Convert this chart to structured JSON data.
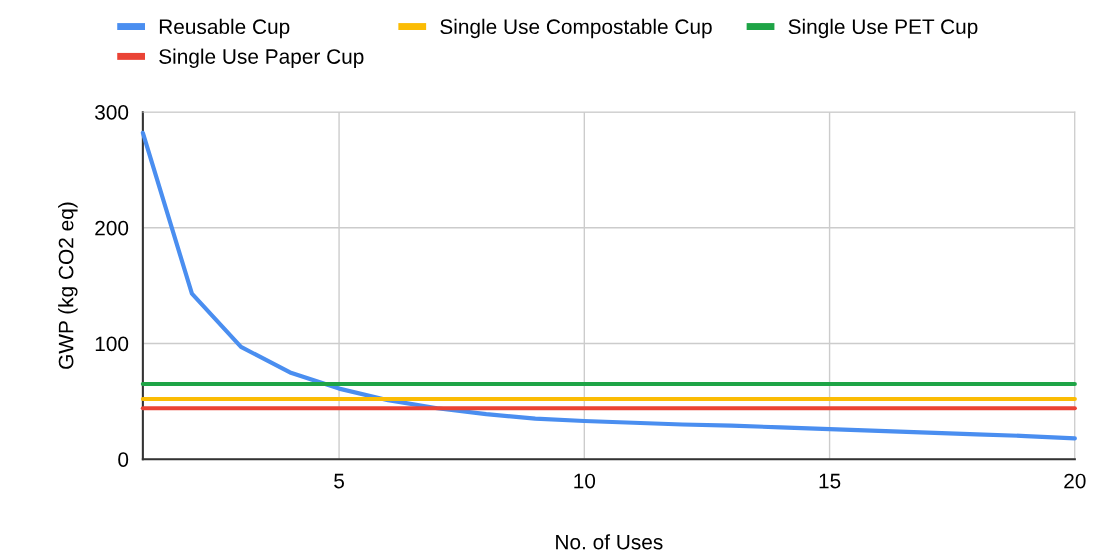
{
  "chart_data": {
    "type": "line",
    "xlabel": "No. of Uses",
    "ylabel": "GWP (kg CO2 eq)",
    "xlim": [
      1,
      20
    ],
    "xticks": [
      5,
      10,
      15,
      20
    ],
    "ylim": [
      0,
      300
    ],
    "yticks": [
      0,
      100,
      200,
      300
    ],
    "grid": true,
    "legend": "top",
    "marker": "none",
    "line_style": "solid",
    "series": [
      {
        "name": "Reusable Cup",
        "color": "#4a8ef0",
        "x": [
          1,
          2,
          3,
          4,
          5,
          6,
          7,
          8,
          9,
          10,
          11,
          12,
          13,
          14,
          15,
          16,
          17,
          18,
          19,
          20
        ],
        "values": [
          282,
          143,
          97,
          75,
          61,
          51,
          44,
          39,
          35,
          33,
          31.5,
          30,
          29,
          27.5,
          26,
          24.5,
          23,
          21.5,
          20,
          18
        ]
      },
      {
        "name": "Single Use Paper Cup",
        "color": "#ea4335",
        "x": [
          1,
          20
        ],
        "values": [
          44,
          44
        ]
      },
      {
        "name": "Single Use Compostable Cup",
        "color": "#fbbc04",
        "x": [
          1,
          20
        ],
        "values": [
          52,
          52
        ]
      },
      {
        "name": "Single Use PET Cup",
        "color": "#1ea446",
        "x": [
          1,
          20
        ],
        "values": [
          65,
          65
        ]
      }
    ]
  }
}
